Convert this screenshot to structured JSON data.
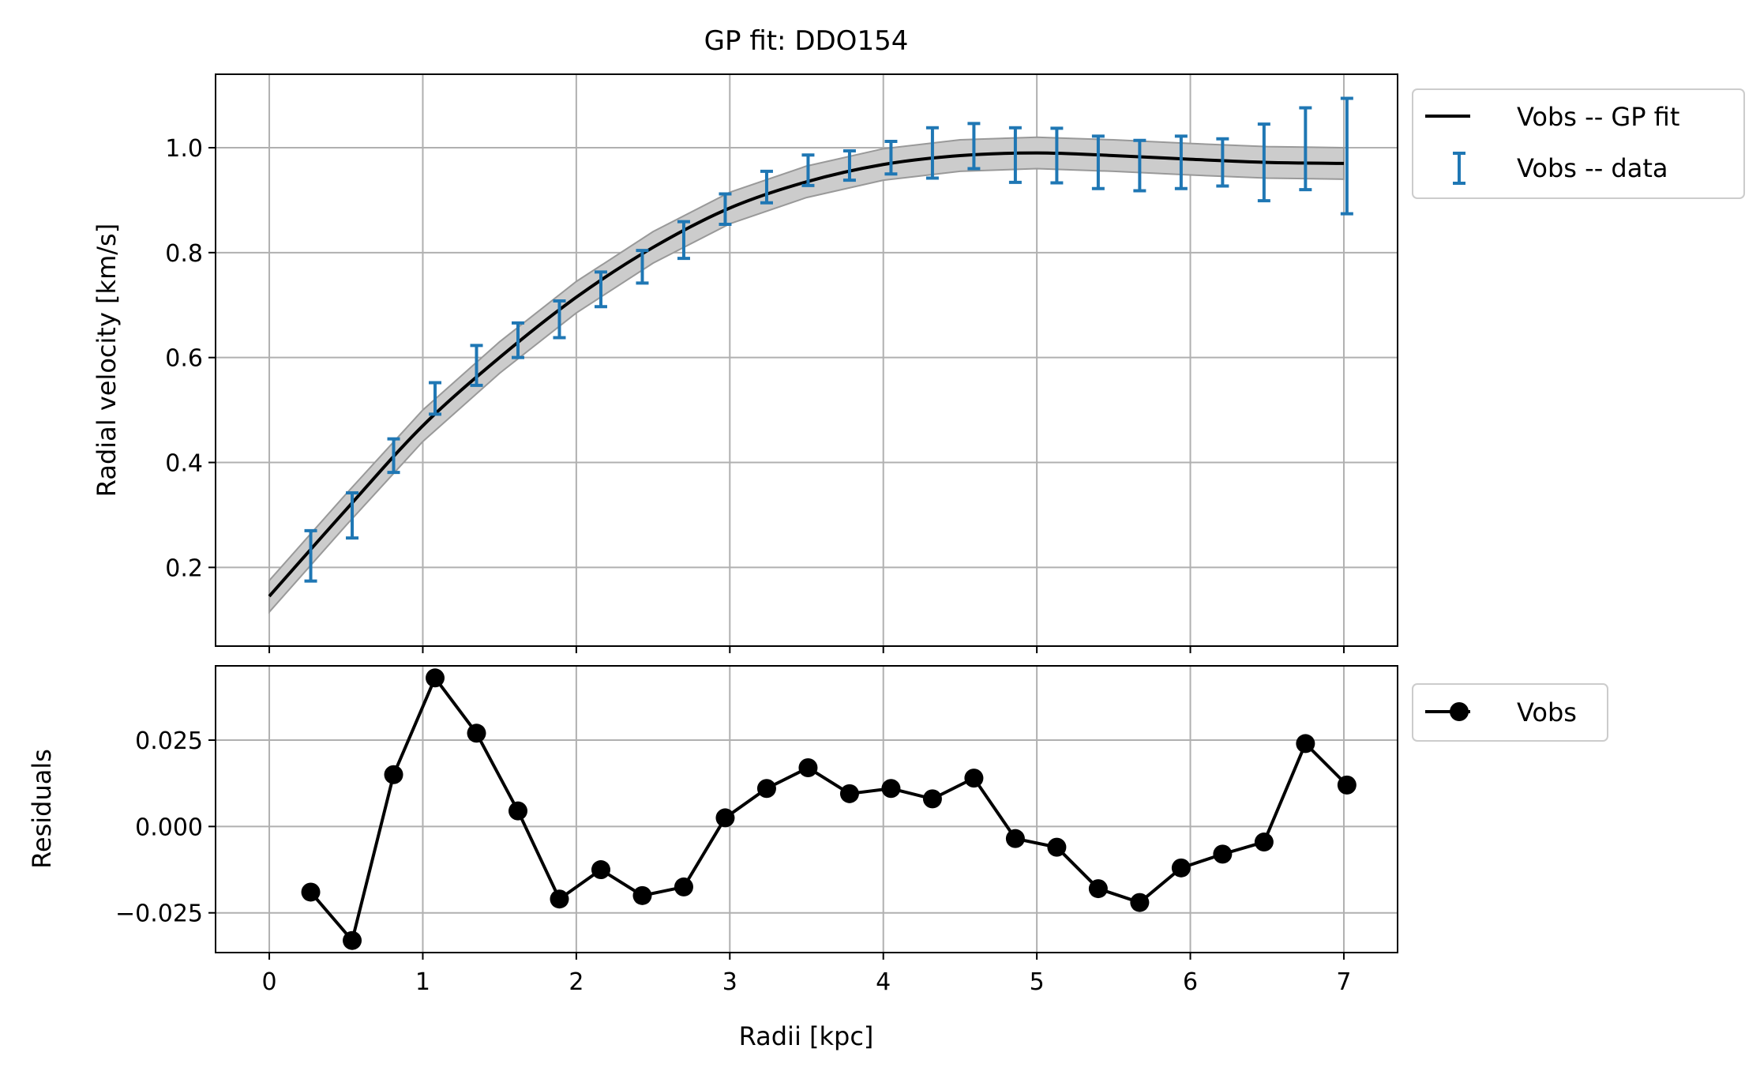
{
  "figure": {
    "title": "GP fit: DDO154"
  },
  "colors": {
    "fit": "#000000",
    "band": "#b3b3b3",
    "data": "#1f77b4",
    "residual": "#000000",
    "grid": "#b0b0b0"
  },
  "chart_data": [
    {
      "type": "line",
      "panel": "top",
      "title": "GP fit: DDO154",
      "xlabel": "",
      "ylabel": "Radial velocity [km/s]",
      "xlim": [
        -0.35,
        7.35
      ],
      "ylim": [
        0.05,
        1.14
      ],
      "x_ticks": [
        0,
        1,
        2,
        3,
        4,
        5,
        6,
        7
      ],
      "x_tick_labels": [],
      "y_ticks": [
        0.2,
        0.4,
        0.6,
        0.8,
        1.0
      ],
      "y_tick_labels": [
        "0.2",
        "0.4",
        "0.6",
        "0.8",
        "1.0"
      ],
      "grid": true,
      "legend": {
        "placement": "outside-top-right",
        "entries": [
          "Vobs -- GP fit",
          "Vobs -- data"
        ]
      },
      "fit": {
        "name": "Vobs -- GP fit",
        "x": [
          0,
          0.5,
          1.0,
          1.5,
          2.0,
          2.5,
          3.0,
          3.5,
          4.0,
          4.5,
          5.0,
          5.5,
          6.0,
          6.5,
          7.0
        ],
        "y": [
          0.145,
          0.31,
          0.47,
          0.6,
          0.715,
          0.81,
          0.885,
          0.935,
          0.968,
          0.985,
          0.99,
          0.985,
          0.978,
          0.972,
          0.97
        ],
        "band_halfwidth": 0.03
      },
      "data": {
        "name": "Vobs -- data",
        "x": [
          0.27,
          0.54,
          0.81,
          1.08,
          1.35,
          1.62,
          1.89,
          2.16,
          2.43,
          2.7,
          2.97,
          3.24,
          3.51,
          3.78,
          4.05,
          4.32,
          4.59,
          4.86,
          5.13,
          5.4,
          5.67,
          5.94,
          6.21,
          6.48,
          6.75,
          7.02
        ],
        "y": [
          0.222,
          0.299,
          0.413,
          0.522,
          0.585,
          0.633,
          0.673,
          0.73,
          0.773,
          0.824,
          0.883,
          0.925,
          0.957,
          0.966,
          0.981,
          0.99,
          1.003,
          0.986,
          0.985,
          0.972,
          0.966,
          0.972,
          0.972,
          0.972,
          0.998,
          0.984
        ],
        "yerr": [
          0.048,
          0.043,
          0.032,
          0.03,
          0.038,
          0.033,
          0.035,
          0.033,
          0.031,
          0.035,
          0.029,
          0.03,
          0.029,
          0.028,
          0.031,
          0.048,
          0.043,
          0.052,
          0.052,
          0.05,
          0.048,
          0.05,
          0.045,
          0.073,
          0.078,
          0.11
        ]
      }
    },
    {
      "type": "line",
      "panel": "bottom",
      "xlabel": "Radii [kpc]",
      "ylabel": "Residuals",
      "xlim": [
        -0.35,
        7.35
      ],
      "ylim": [
        -0.0365,
        0.0465
      ],
      "x_ticks": [
        0,
        1,
        2,
        3,
        4,
        5,
        6,
        7
      ],
      "x_tick_labels": [
        "0",
        "1",
        "2",
        "3",
        "4",
        "5",
        "6",
        "7"
      ],
      "y_ticks": [
        -0.025,
        0.0,
        0.025
      ],
      "y_tick_labels": [
        "−0.025",
        "0.000",
        "0.025"
      ],
      "grid": true,
      "legend": {
        "placement": "outside-top-right",
        "entries": [
          "Vobs"
        ]
      },
      "series": [
        {
          "name": "Vobs",
          "x": [
            0.27,
            0.54,
            0.81,
            1.08,
            1.35,
            1.62,
            1.89,
            2.16,
            2.43,
            2.7,
            2.97,
            3.24,
            3.51,
            3.78,
            4.05,
            4.32,
            4.59,
            4.86,
            5.13,
            5.4,
            5.67,
            5.94,
            6.21,
            6.48,
            6.75,
            7.02
          ],
          "y": [
            -0.019,
            -0.033,
            0.015,
            0.043,
            0.027,
            0.0045,
            -0.021,
            -0.0125,
            -0.02,
            -0.0175,
            0.0025,
            0.011,
            0.017,
            0.0095,
            0.011,
            0.008,
            0.014,
            -0.0035,
            -0.006,
            -0.018,
            -0.022,
            -0.012,
            -0.008,
            -0.0045,
            0.024,
            0.012
          ]
        }
      ]
    }
  ]
}
